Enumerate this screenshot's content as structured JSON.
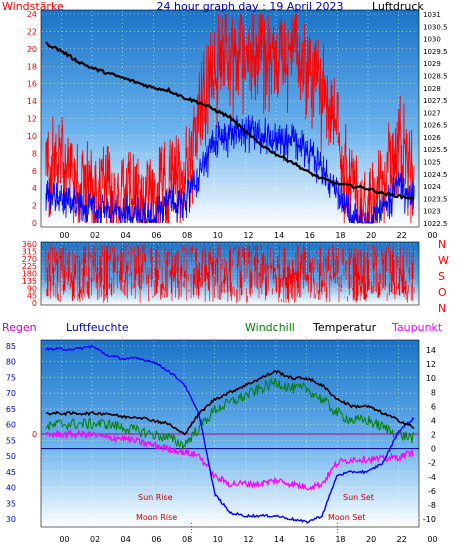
{
  "title": "24 hour graph day : 19 April 2023",
  "colors": {
    "bg_top": "#1a73c8",
    "bg_bottom": "#ffffff",
    "wind_gust": "#ff0000",
    "wind_avg": "#0000ff",
    "pressure": "#000000",
    "direction": "#ff0000",
    "humidity": "#0000ff",
    "windchill": "#008000",
    "temperature": "#000000",
    "dewpoint": "#ff00ff",
    "axis_left": "#ff0000",
    "axis_right_temp": "#000000",
    "zero_line": "#000080"
  },
  "time_ticks": [
    "00",
    "02",
    "04",
    "06",
    "08",
    "10",
    "12",
    "14",
    "16",
    "18",
    "20",
    "22",
    "00"
  ],
  "panel1": {
    "left_title": "Windstärke",
    "right_title": "Luftdruck",
    "left_ticks": [
      "0",
      "2",
      "4",
      "6",
      "8",
      "10",
      "12",
      "14",
      "16",
      "18",
      "20",
      "22",
      "24"
    ],
    "right_ticks": [
      "1022.5",
      "1023",
      "1023.5",
      "1024",
      "1024.5",
      "1025",
      "1025.5",
      "1026",
      "1026.5",
      "1027",
      "1027.5",
      "1028",
      "1028.5",
      "1029",
      "1029.5",
      "1030",
      "1030.5",
      "1031"
    ]
  },
  "panel2": {
    "left_ticks": [
      "0",
      "45",
      "90",
      "135",
      "180",
      "225",
      "270",
      "315",
      "360"
    ],
    "compass": [
      "N",
      "W",
      "S",
      "O",
      "N"
    ]
  },
  "panel3": {
    "regen_label": "Regen",
    "humidity_label": "Luftfeuchte",
    "windchill_label": "Windchill",
    "temperature_label": "Temperatur",
    "dewpoint_label": "Taupunkt",
    "humidity_ticks": [
      "30",
      "35",
      "40",
      "45",
      "50",
      "55",
      "60",
      "65",
      "70",
      "75",
      "80",
      "85"
    ],
    "rain_tick": "0",
    "temp_ticks": [
      "-10",
      "-8",
      "-6",
      "-4",
      "-2",
      "0",
      "2",
      "4",
      "6",
      "8",
      "10",
      "12",
      "14"
    ],
    "sun_rise": "Sun Rise",
    "sun_set": "Sun Set",
    "moon_rise": "Moon Rise",
    "moon_set": "Moon Set"
  },
  "chart_data": [
    {
      "type": "line",
      "title": "24 hour graph day : 19 April 2023",
      "xlabel": "",
      "ylabel_left": "Windstärke",
      "ylabel_right": "Luftdruck",
      "ylim_left": [
        0,
        24
      ],
      "ylim_right": [
        1022.5,
        1031
      ],
      "x": [
        0,
        1,
        2,
        3,
        4,
        5,
        6,
        7,
        8,
        9,
        10,
        11,
        12,
        13,
        14,
        15,
        16,
        17,
        18,
        19,
        20,
        21,
        22,
        23,
        24
      ],
      "series": [
        {
          "name": "Luftdruck",
          "axis": "right",
          "values": [
            1029.8,
            1029.5,
            1029.1,
            1028.8,
            1028.6,
            1028.4,
            1028.2,
            1028.0,
            1027.9,
            1027.6,
            1027.4,
            1027.1,
            1026.8,
            1026.2,
            1025.7,
            1025.3,
            1025.0,
            1024.6,
            1024.3,
            1024.1,
            1024.0,
            1023.9,
            1023.7,
            1023.6,
            1023.5
          ]
        },
        {
          "name": "Windstärke (Böen)",
          "axis": "left",
          "values": [
            8,
            9,
            7,
            5,
            5,
            4,
            5,
            4,
            6,
            7,
            14,
            20,
            21,
            21,
            21,
            20,
            21,
            19,
            17,
            12,
            5,
            2,
            6,
            12,
            6
          ]
        },
        {
          "name": "Windstärke (Mittel)",
          "axis": "left",
          "values": [
            4,
            3,
            3,
            2,
            2,
            2,
            2,
            1,
            3,
            3,
            6,
            10,
            11,
            11,
            11,
            10,
            10,
            9,
            7,
            4,
            1,
            0,
            2,
            5,
            3
          ]
        }
      ]
    },
    {
      "type": "line",
      "ylim": [
        0,
        360
      ],
      "x": [
        0,
        2,
        4,
        6,
        8,
        10,
        12,
        14,
        16,
        18,
        20,
        22,
        24
      ],
      "series": [
        {
          "name": "Windrichtung",
          "values": [
            180,
            200,
            170,
            190,
            210,
            230,
            220,
            210,
            200,
            190,
            210,
            220,
            200
          ]
        }
      ]
    },
    {
      "type": "line",
      "ylim_left": [
        28,
        87
      ],
      "ylim_right": [
        -10,
        15
      ],
      "x": [
        0,
        1,
        2,
        3,
        4,
        5,
        6,
        7,
        8,
        9,
        10,
        11,
        12,
        13,
        14,
        15,
        16,
        17,
        18,
        19,
        20,
        21,
        22,
        23,
        24
      ],
      "series": [
        {
          "name": "Luftfeuchte",
          "axis": "left",
          "values": [
            84,
            84,
            84,
            85,
            82,
            81,
            81,
            80,
            77,
            73,
            63,
            38,
            32,
            31,
            31,
            31,
            30,
            29,
            31,
            44,
            45,
            45,
            48,
            58,
            62
          ]
        },
        {
          "name": "Temperatur",
          "axis": "right",
          "values": [
            5,
            5,
            5,
            5,
            5,
            4.5,
            4.5,
            4,
            3.5,
            2,
            5,
            7,
            8,
            9,
            10,
            11,
            10,
            10,
            9,
            7,
            6,
            6,
            5,
            4,
            3
          ]
        },
        {
          "name": "Windchill",
          "axis": "right",
          "values": [
            3,
            3.5,
            3.5,
            3.5,
            3.5,
            3,
            2.5,
            2,
            1.5,
            0.5,
            3,
            5.5,
            6.5,
            7.5,
            8.5,
            9.5,
            8.5,
            8.5,
            7,
            5,
            4,
            4,
            3,
            2,
            1.5
          ]
        },
        {
          "name": "Taupunkt",
          "axis": "right",
          "values": [
            2,
            2,
            2,
            2,
            1.5,
            1.5,
            1,
            0.5,
            0,
            -0.5,
            -1,
            -4,
            -5,
            -5,
            -5,
            -4.5,
            -5,
            -5.5,
            -5,
            -2,
            -1.5,
            -1.5,
            -1.5,
            -1.2,
            -0.5
          ]
        }
      ]
    }
  ]
}
